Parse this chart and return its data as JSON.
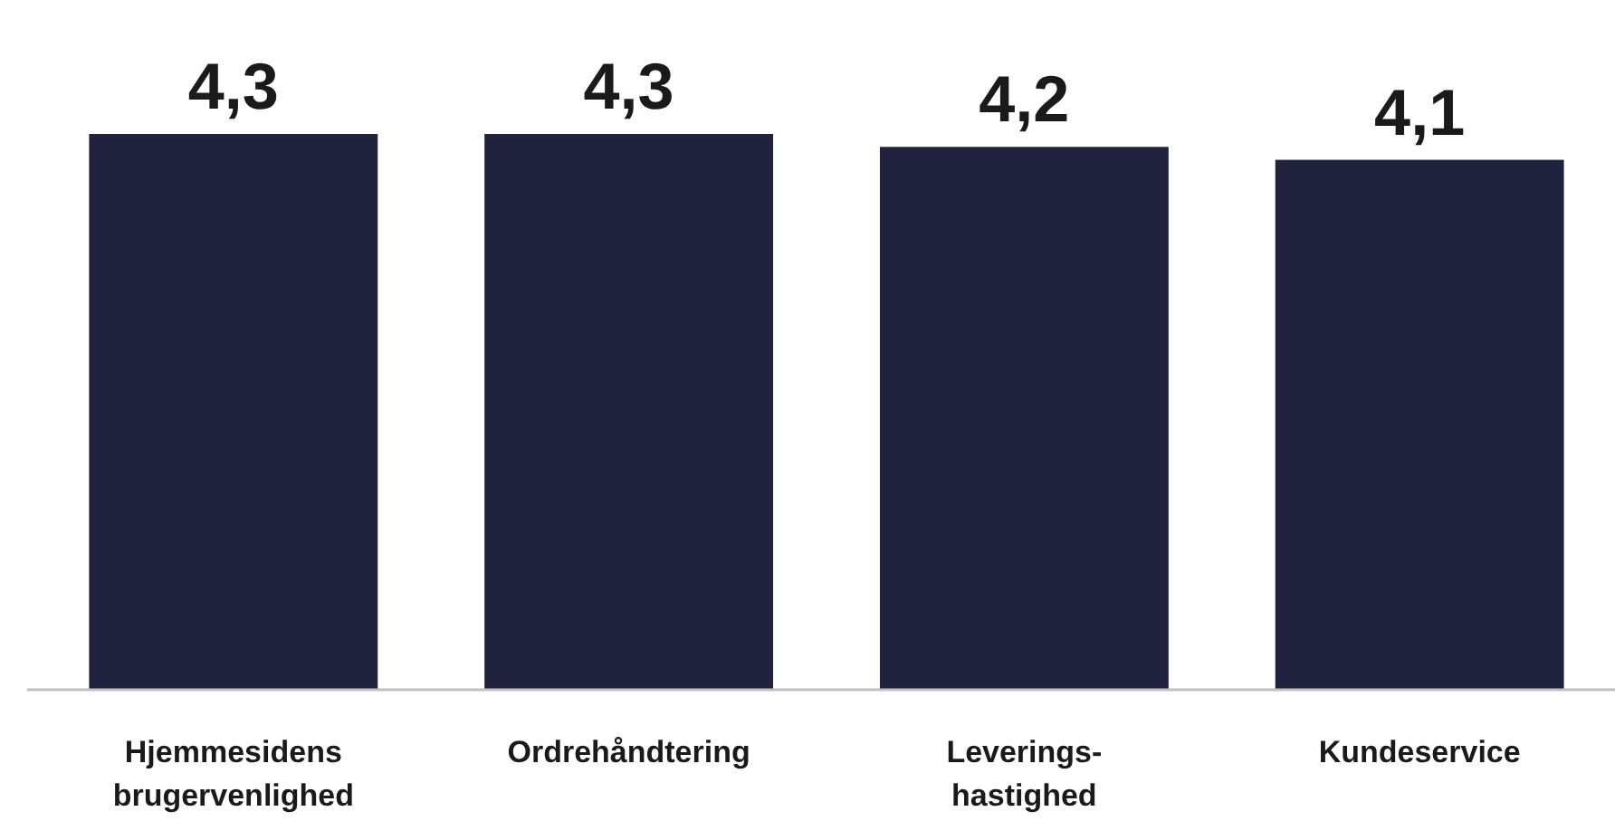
{
  "chart_data": {
    "type": "bar",
    "categories": [
      "Hjemmesidens brugervenlighed",
      "Ordrehåndtering",
      "Leverings-hastighed",
      "Kundeservice"
    ],
    "values": [
      4.3,
      4.3,
      4.2,
      4.1
    ],
    "value_labels": [
      "4,3",
      "4,3",
      "4,2",
      "4,1"
    ],
    "color": "#21223d",
    "ylim": [
      0,
      4.3
    ],
    "tick_labels": "x"
  }
}
